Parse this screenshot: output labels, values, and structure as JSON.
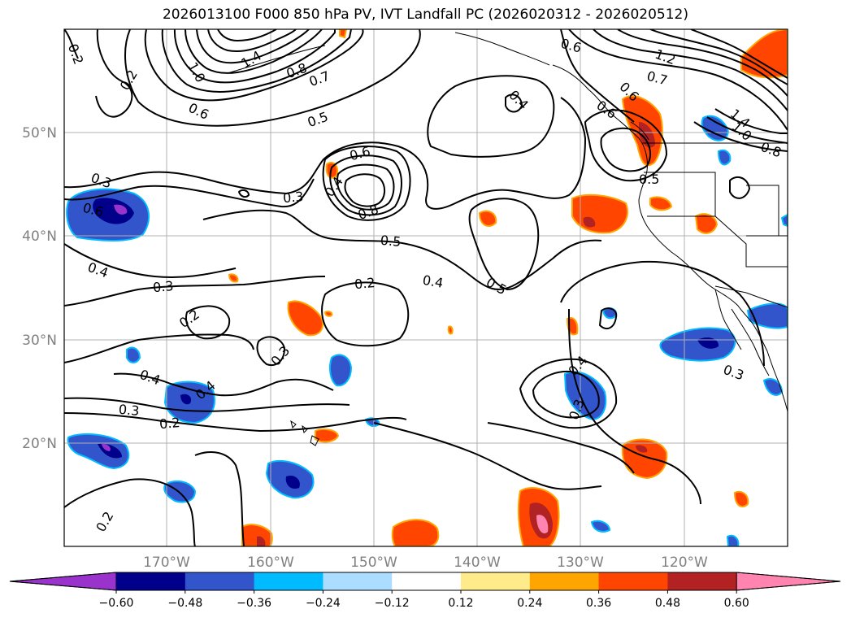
{
  "title": "2026013100 F000 850 hPa PV, IVT Landfall PC (2026020312 - 2026020512)",
  "latitude_labels": [
    "50°N",
    "40°N",
    "30°N",
    "20°N"
  ],
  "longitude_labels": [
    "170°W",
    "160°W",
    "150°W",
    "140°W",
    "130°W",
    "120°W"
  ],
  "colorbar": {
    "tick_labels": [
      "−0.60",
      "−0.48",
      "−0.36",
      "−0.24",
      "−0.12",
      "0.12",
      "0.24",
      "0.36",
      "0.48",
      "0.60"
    ],
    "colors": [
      "#9933cc",
      "#00008b",
      "#3355cc",
      "#00bbff",
      "#aaddff",
      "#ffffff",
      "#ffeb8a",
      "#ffa500",
      "#ff4500",
      "#b22222",
      "#ff85b0"
    ]
  },
  "contour_labels": [
    "0.2",
    "0.2",
    "1.0",
    "1.4",
    "0.8",
    "0.7",
    "0.6",
    "0.5",
    "0.6",
    "0.4",
    "0.6",
    "1.2",
    "0.7",
    "0.6",
    "1.4",
    "1.0",
    "0.8",
    "0.3",
    "0.6",
    "0.6",
    "0.3",
    "0.8",
    "0.5",
    "0.4",
    "0.4",
    "0.3",
    "0.2",
    "0.2",
    "0.4",
    "0.5",
    "0.5",
    "0.3",
    "0.4",
    "0.4",
    "0.3",
    "0.2",
    "0.4",
    "0.3",
    "0.3",
    "0.2"
  ]
}
